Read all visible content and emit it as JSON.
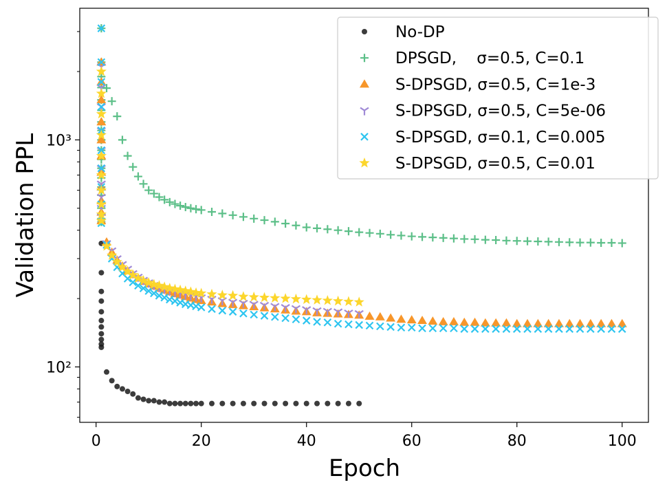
{
  "chart_data": {
    "type": "scatter",
    "xlabel": "Epoch",
    "ylabel": "Validation PPL",
    "xlim": [
      -3.1,
      105
    ],
    "ylim": [
      57,
      3800
    ],
    "ylog": true,
    "xticks": [
      0,
      20,
      40,
      60,
      80,
      100
    ],
    "yticks": [
      {
        "value": 100,
        "label": "10²"
      },
      {
        "value": 1000,
        "label": "10³"
      }
    ],
    "yminorticks": [
      60,
      70,
      80,
      90,
      200,
      300,
      400,
      500,
      600,
      700,
      800,
      900,
      2000,
      3000
    ],
    "legend": "upper right",
    "series": [
      {
        "name": "No-DP",
        "color": "#1a1a1a",
        "marker": "circle",
        "x": [
          1,
          1,
          1,
          1,
          1,
          1,
          1,
          1,
          1,
          1,
          1,
          2,
          3,
          4,
          5,
          6,
          7,
          8,
          9,
          10,
          11,
          12,
          13,
          14,
          15,
          16,
          17,
          18,
          19,
          20,
          22,
          24,
          26,
          28,
          30,
          32,
          34,
          36,
          38,
          40,
          42,
          44,
          46,
          48,
          50
        ],
        "values": [
          350,
          260,
          215,
          195,
          175,
          160,
          150,
          140,
          132,
          126,
          122,
          95,
          87,
          82,
          80,
          78,
          76,
          73,
          72,
          71,
          71,
          70,
          70,
          69,
          69,
          69,
          69,
          69,
          69,
          69,
          69,
          69,
          69,
          69,
          69,
          69,
          69,
          69,
          69,
          69,
          69,
          69,
          69,
          69,
          69
        ]
      },
      {
        "name": "DPSGD,    σ=0.5, C=0.1",
        "color": "#5cbf88",
        "marker": "plus",
        "x": [
          1,
          1,
          1,
          1,
          1,
          1,
          1,
          1,
          1,
          1,
          1,
          1,
          1,
          1,
          1,
          1,
          1,
          1,
          1,
          1,
          2,
          3,
          4,
          5,
          6,
          7,
          8,
          9,
          10,
          11,
          12,
          13,
          14,
          15,
          16,
          17,
          18,
          19,
          20,
          22,
          24,
          26,
          28,
          30,
          32,
          34,
          36,
          38,
          40,
          42,
          44,
          46,
          48,
          50,
          52,
          54,
          56,
          58,
          60,
          62,
          64,
          66,
          68,
          70,
          72,
          74,
          76,
          78,
          80,
          82,
          84,
          86,
          88,
          90,
          92,
          94,
          96,
          98,
          100
        ],
        "values": [
          3100,
          2200,
          1900,
          1700,
          1500,
          1350,
          1200,
          1100,
          1000,
          900,
          820,
          750,
          680,
          620,
          570,
          530,
          500,
          470,
          450,
          435,
          1690,
          1480,
          1270,
          1000,
          850,
          760,
          690,
          640,
          600,
          580,
          560,
          545,
          532,
          522,
          513,
          506,
          500,
          495,
          491,
          482,
          474,
          466,
          458,
          450,
          443,
          436,
          428,
          420,
          412,
          408,
          404,
          400,
          396,
          392,
          389,
          386,
          382,
          379,
          376,
          374,
          372,
          370,
          368,
          366,
          365,
          363,
          362,
          360,
          359,
          358,
          357,
          356,
          355,
          354,
          353,
          353,
          352,
          352,
          351
        ]
      },
      {
        "name": "S-DPSGD, σ=0.5, C=1e-3",
        "color": "#f7962a",
        "marker": "triangle",
        "x": [
          1,
          1,
          1,
          1,
          1,
          1,
          1,
          1,
          1,
          1,
          1,
          2,
          3,
          4,
          5,
          6,
          7,
          8,
          9,
          10,
          11,
          12,
          13,
          14,
          15,
          16,
          17,
          18,
          19,
          20,
          22,
          24,
          26,
          28,
          30,
          32,
          34,
          36,
          38,
          40,
          42,
          44,
          46,
          48,
          50,
          52,
          54,
          56,
          58,
          60,
          62,
          64,
          66,
          68,
          70,
          72,
          74,
          76,
          78,
          80,
          82,
          84,
          86,
          88,
          90,
          92,
          94,
          96,
          98,
          100
        ],
        "values": [
          2200,
          1800,
          1500,
          1200,
          1000,
          850,
          720,
          620,
          540,
          480,
          440,
          355,
          320,
          295,
          278,
          265,
          255,
          246,
          238,
          232,
          227,
          222,
          218,
          214,
          210,
          207,
          204,
          201,
          198,
          196,
          193,
          190,
          188,
          186,
          184,
          182,
          180,
          178,
          176,
          175,
          173,
          172,
          171,
          170,
          169,
          167,
          166,
          164,
          162,
          161,
          160,
          159,
          158,
          158,
          157,
          157,
          156,
          156,
          156,
          155,
          155,
          155,
          155,
          155,
          155,
          155,
          155,
          155,
          155,
          155
        ]
      },
      {
        "name": "S-DPSGD, σ=0.5, C=5e-06",
        "color": "#a08ad6",
        "marker": "tri",
        "x": [
          1,
          1,
          1,
          1,
          1,
          1,
          1,
          1,
          1,
          1,
          2,
          3,
          4,
          5,
          6,
          7,
          8,
          9,
          10,
          11,
          12,
          13,
          14,
          15,
          16,
          17,
          18,
          19,
          20,
          22,
          24,
          26,
          28,
          30,
          32,
          34,
          36,
          38,
          40,
          42,
          44,
          46,
          48,
          50
        ],
        "values": [
          2100,
          1700,
          1400,
          1100,
          900,
          750,
          640,
          560,
          500,
          460,
          350,
          325,
          300,
          283,
          270,
          258,
          249,
          241,
          235,
          229,
          224,
          220,
          216,
          213,
          210,
          208,
          206,
          204,
          202,
          199,
          196,
          193,
          191,
          189,
          187,
          185,
          183,
          181,
          179,
          177,
          176,
          175,
          173,
          172
        ]
      },
      {
        "name": "S-DPSGD, σ=0.1, C=0.005",
        "color": "#2ec5f0",
        "marker": "x",
        "x": [
          1,
          1,
          1,
          1,
          1,
          1,
          1,
          1,
          1,
          1,
          1,
          2,
          3,
          4,
          5,
          6,
          7,
          8,
          9,
          10,
          11,
          12,
          13,
          14,
          15,
          16,
          17,
          18,
          19,
          20,
          22,
          24,
          26,
          28,
          30,
          32,
          34,
          36,
          38,
          40,
          42,
          44,
          46,
          48,
          50,
          52,
          54,
          56,
          58,
          60,
          62,
          64,
          66,
          68,
          70,
          72,
          74,
          76,
          78,
          80,
          82,
          84,
          86,
          88,
          90,
          92,
          94,
          96,
          98,
          100
        ],
        "values": [
          3100,
          2200,
          1800,
          1400,
          1100,
          900,
          750,
          620,
          520,
          460,
          430,
          345,
          300,
          275,
          258,
          245,
          236,
          228,
          222,
          216,
          211,
          206,
          202,
          198,
          195,
          192,
          189,
          187,
          185,
          183,
          180,
          177,
          175,
          172,
          170,
          168,
          166,
          164,
          162,
          160,
          158,
          157,
          155,
          154,
          153,
          152,
          151,
          150,
          149,
          149,
          148,
          148,
          148,
          148,
          147,
          147,
          147,
          147,
          147,
          147,
          147,
          147,
          147,
          147,
          147,
          147,
          147,
          147,
          147,
          147
        ]
      },
      {
        "name": "S-DPSGD, σ=0.5, C=0.01",
        "color": "#fcd62c",
        "marker": "star",
        "x": [
          1,
          1,
          1,
          1,
          1,
          1,
          1,
          1,
          1,
          1,
          2,
          3,
          4,
          5,
          6,
          7,
          8,
          9,
          10,
          11,
          12,
          13,
          14,
          15,
          16,
          17,
          18,
          19,
          20,
          22,
          24,
          26,
          28,
          30,
          32,
          34,
          36,
          38,
          40,
          42,
          44,
          46,
          48,
          50
        ],
        "values": [
          2000,
          1600,
          1300,
          1050,
          850,
          700,
          600,
          520,
          470,
          440,
          340,
          310,
          290,
          275,
          263,
          254,
          246,
          240,
          235,
          231,
          228,
          225,
          222,
          220,
          218,
          216,
          214,
          212,
          211,
          209,
          207,
          206,
          204,
          203,
          202,
          201,
          200,
          199,
          198,
          197,
          196,
          195,
          194,
          193
        ]
      }
    ]
  }
}
